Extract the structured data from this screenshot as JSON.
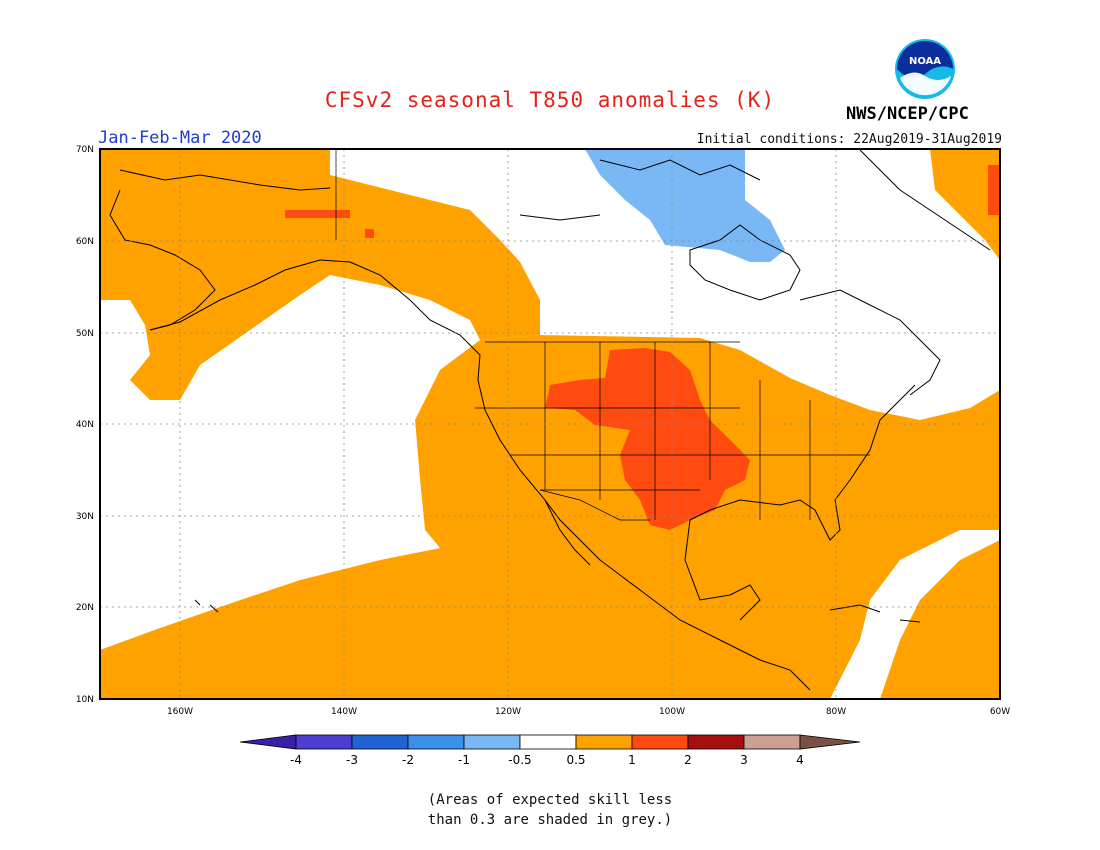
{
  "header": {
    "title": "CFSv2 seasonal T850 anomalies (K)",
    "period": "Jan-Feb-Mar 2020",
    "initial_conditions": "Initial conditions: 22Aug2019-31Aug2019",
    "agency": "NWS/NCEP/CPC",
    "logo_text": "NOAA",
    "logo_icon": "noaa-logo-icon"
  },
  "map": {
    "region": "North America / Northeast Pacific",
    "lon_range": [
      -172,
      -60
    ],
    "lat_range": [
      10,
      70
    ],
    "lat_labels": [
      "70N",
      "60N",
      "50N",
      "40N",
      "30N",
      "20N",
      "10N"
    ],
    "lon_labels": [
      "160W",
      "140W",
      "120W",
      "100W",
      "80W",
      "60W"
    ],
    "colors": {
      "frame": "#000000",
      "grid": "#888888",
      "coast": "#000000"
    }
  },
  "legend": {
    "labels": [
      "-4",
      "-3",
      "-2",
      "-1",
      "-0.5",
      "0.5",
      "1",
      "2",
      "3",
      "4"
    ],
    "colors": [
      "#3b1fa8",
      "#4d3dd2",
      "#1f64d4",
      "#3d8fec",
      "#79b8f5",
      "#ffffff",
      "#ffa200",
      "#ff4a10",
      "#a50f12",
      "#c9a092",
      "#7a5045"
    ]
  },
  "note": {
    "line1": "(Areas of expected skill less",
    "line2": "than 0.3 are shaded in grey.)"
  }
}
